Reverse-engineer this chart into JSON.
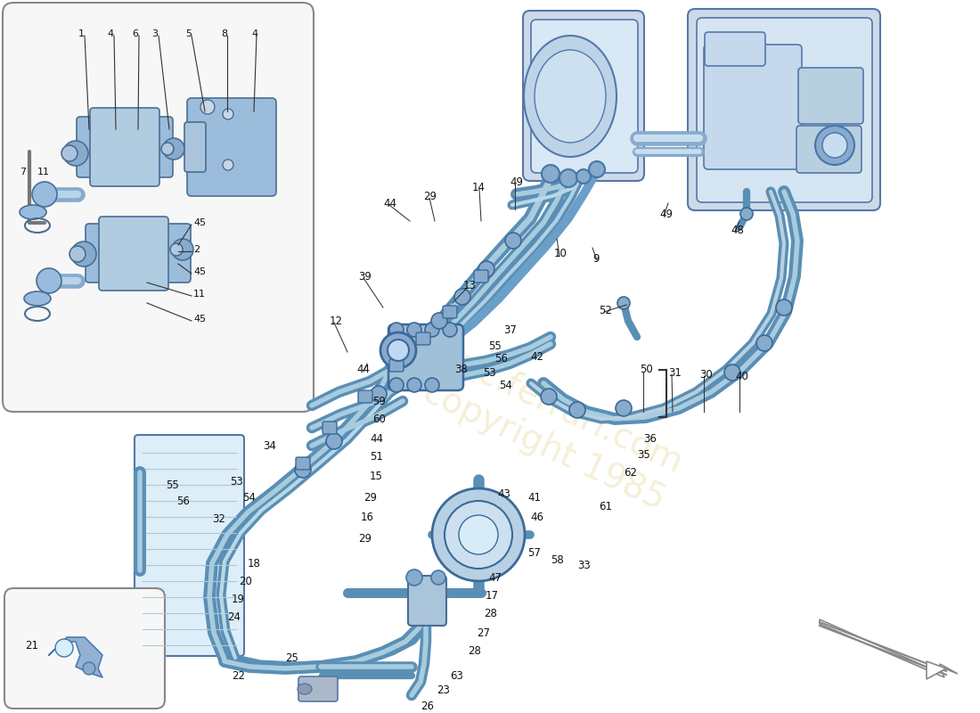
{
  "bg_color": "#ffffff",
  "pipe_color_dark": "#5a8fb5",
  "pipe_color_mid": "#7ab0d0",
  "pipe_color_light": "#a0c8e0",
  "pipe_color_fill": "#c8dff0",
  "comp_color": "#b8d4e8",
  "comp_color_dark": "#8aadcc",
  "comp_edge": "#5577aa",
  "text_color": "#111111",
  "line_color": "#333333",
  "inset_bg": "#f5f5f5",
  "wm_color": "#d4c060",
  "wm_alpha": 0.18
}
